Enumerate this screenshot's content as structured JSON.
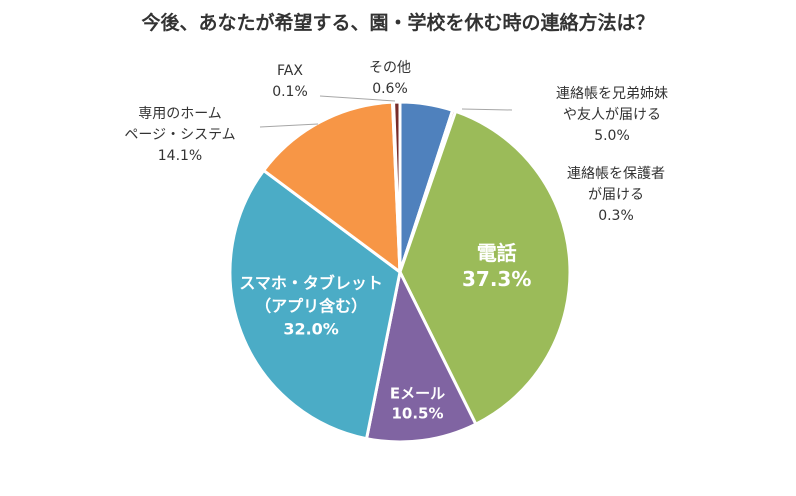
{
  "chart_data": {
    "type": "pie",
    "title": "今後、あなたが希望する、園・学校を休む時の連絡方法は？",
    "unit": "%",
    "slices": [
      {
        "name": "連絡帳を兄弟姉妹や友人が届ける",
        "label_lines": [
          "連絡帳を兄弟姉妹",
          "や友人が届ける"
        ],
        "value_text": "5.0%",
        "value": 5.0,
        "color": "#4f81bd",
        "label_position": "outside"
      },
      {
        "name": "連絡帳を保護者が届ける",
        "label_lines": [
          "連絡帳を保護者",
          "が届ける"
        ],
        "value_text": "0.3%",
        "value": 0.3,
        "color": "#c0504d",
        "label_position": "outside"
      },
      {
        "name": "電話",
        "label_lines": [
          "電話"
        ],
        "value_text": "37.3%",
        "value": 37.3,
        "color": "#9bbb59",
        "label_position": "inside"
      },
      {
        "name": "Eメール",
        "label_lines": [
          "Eメール"
        ],
        "value_text": "10.5%",
        "value": 10.5,
        "color": "#8064a2",
        "label_position": "inside"
      },
      {
        "name": "スマホ・タブレット（アプリ含む）",
        "label_lines": [
          "スマホ・タブレット",
          "（アプリ含む）"
        ],
        "value_text": "32.0%",
        "value": 32.0,
        "color": "#4bacc6",
        "label_position": "inside"
      },
      {
        "name": "専用のホームページ・システム",
        "label_lines": [
          "専用のホーム",
          "ページ・システム"
        ],
        "value_text": "14.1%",
        "value": 14.1,
        "color": "#f79646",
        "label_position": "outside"
      },
      {
        "name": "FAX",
        "label_lines": [
          "FAX"
        ],
        "value_text": "0.1%",
        "value": 0.1,
        "color": "#2c4d75",
        "label_position": "outside"
      },
      {
        "name": "その他",
        "label_lines": [
          "その他"
        ],
        "value_text": "0.6%",
        "value": 0.6,
        "color": "#772c2a",
        "label_position": "outside"
      }
    ]
  }
}
